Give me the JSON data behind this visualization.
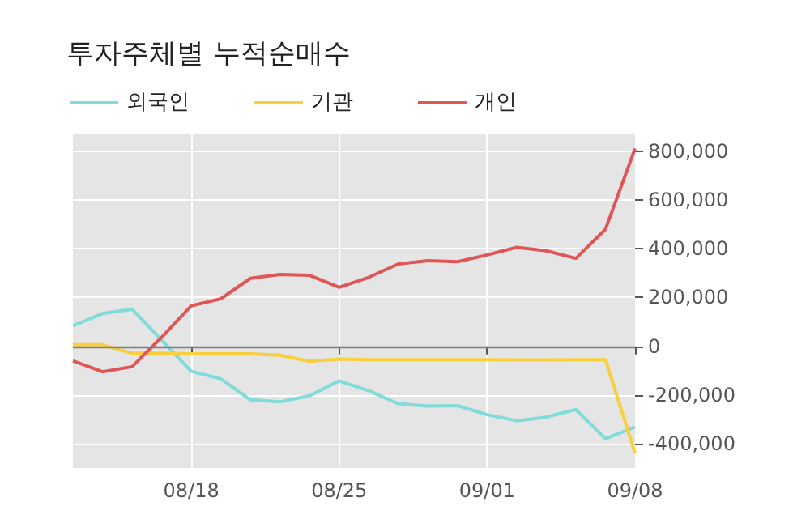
{
  "chart_data": {
    "type": "line",
    "title": "투자주체별 누적순매수",
    "categories": [
      null,
      null,
      null,
      null,
      "08/18",
      null,
      null,
      null,
      null,
      "08/25",
      null,
      null,
      null,
      null,
      "09/01",
      null,
      null,
      null,
      null,
      "09/08"
    ],
    "series": [
      {
        "name": "외국인",
        "color": "#7fdcd9",
        "values": [
          84000,
          134000,
          152000,
          25000,
          -103000,
          -134000,
          -220000,
          -228000,
          -203000,
          -142000,
          -183000,
          -236000,
          -246000,
          -244000,
          -281000,
          -306000,
          -291000,
          -260000,
          -380000,
          -332000
        ]
      },
      {
        "name": "기관",
        "color": "#f9cf3c",
        "values": [
          6000,
          6000,
          -29000,
          -29000,
          -31000,
          -31000,
          -31000,
          -37000,
          -62000,
          -53000,
          -55000,
          -55000,
          -55000,
          -55000,
          -55000,
          -56000,
          -56000,
          -55000,
          -55000,
          -439000
        ]
      },
      {
        "name": "개인",
        "color": "#e05656",
        "values": [
          -60000,
          -105000,
          -84000,
          37000,
          166000,
          195000,
          279000,
          295000,
          291000,
          242000,
          283000,
          338000,
          351000,
          347000,
          375000,
          406000,
          392000,
          361000,
          480000,
          812000
        ]
      }
    ],
    "ylim": [
      -500000,
      870000
    ],
    "yticks": [
      {
        "value": -400000,
        "label": "-400,000"
      },
      {
        "value": -200000,
        "label": "-200,000"
      },
      0,
      {
        "value": 200000,
        "label": "200,000"
      },
      {
        "value": 400000,
        "label": "400,000"
      },
      {
        "value": 600000,
        "label": "600,000"
      },
      {
        "value": 800000,
        "label": "800,000"
      }
    ],
    "ref_lines": [
      {
        "axis": "y",
        "value": 0,
        "color": "#808080"
      }
    ],
    "grid": true,
    "legend": "top left",
    "marker": "none",
    "line_style": "solid"
  }
}
